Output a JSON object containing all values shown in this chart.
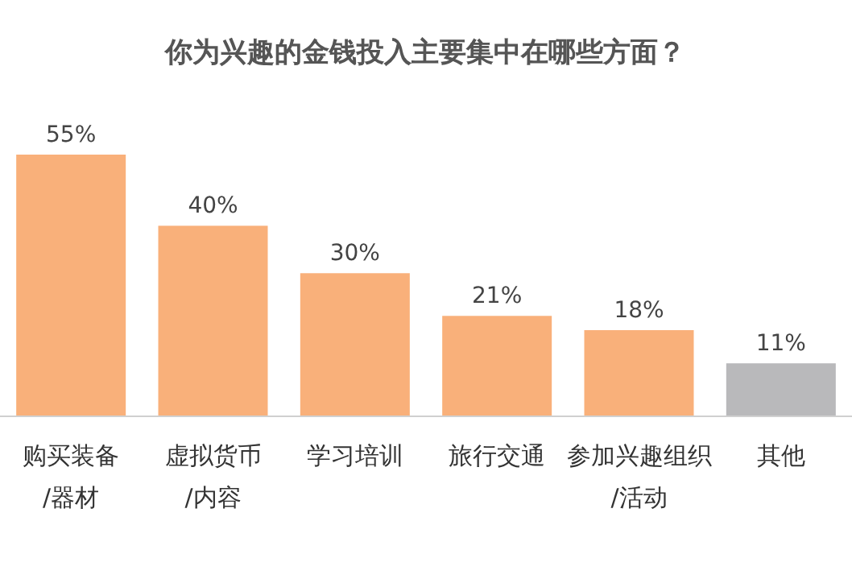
{
  "chart_data": {
    "type": "bar",
    "title": "你为兴趣的金钱投入主要集中在哪些方面？",
    "categories": [
      "购买装备/器材",
      "虚拟货币/内容",
      "学习培训",
      "旅行交通",
      "参加兴趣组织/活动",
      "其他"
    ],
    "values": [
      55,
      40,
      30,
      21,
      18,
      11
    ],
    "colors": [
      "#f9b07a",
      "#f9b07a",
      "#f9b07a",
      "#f9b07a",
      "#f9b07a",
      "#b9b9bb"
    ],
    "value_labels": [
      "55%",
      "40%",
      "30%",
      "21%",
      "18%",
      "11%"
    ]
  }
}
